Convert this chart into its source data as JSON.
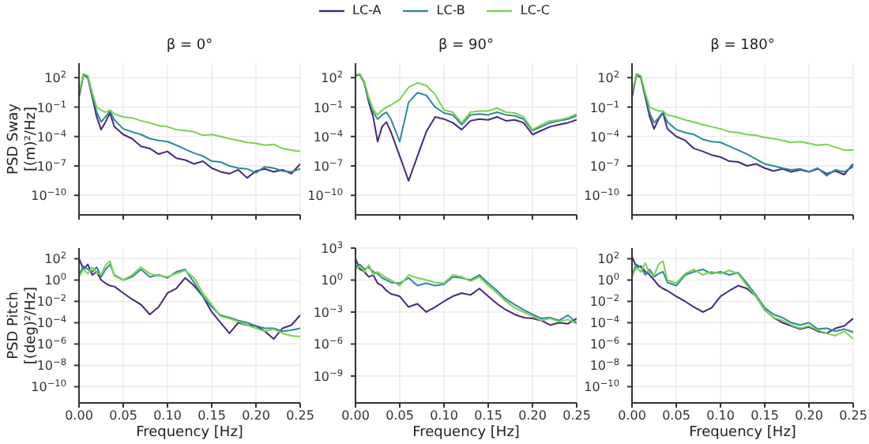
{
  "chart_data": [
    {
      "type": "line",
      "title": "β = 0°",
      "ylabel": "PSD Sway [(m)²/Hz]",
      "legend": "top",
      "grid": true,
      "log": "y",
      "tick_labels": "y",
      "xlim": [
        0,
        0.25
      ],
      "xticks": [
        {
          "value": 0,
          "label": null
        },
        {
          "value": 0.05,
          "label": null
        },
        {
          "value": 0.1,
          "label": null
        },
        {
          "value": 0.15,
          "label": null
        },
        {
          "value": 0.2,
          "label": null
        },
        {
          "value": 0.25,
          "label": null
        }
      ],
      "ylim": [
        1e-12,
        3000
      ],
      "yticks": [
        {
          "value": 100,
          "label": "10$^{2}$"
        },
        {
          "value": 0.1,
          "label": "10$^{−1}$"
        },
        {
          "value": 0.0001,
          "label": "10$^{−4}$"
        },
        {
          "value": 1e-07,
          "label": "10$^{−7}$"
        },
        {
          "value": 1e-10,
          "label": "10$^{−10}$"
        }
      ],
      "x": [
        0,
        0.005,
        0.01,
        0.015,
        0.02,
        0.025,
        0.03,
        0.035,
        0.04,
        0.05,
        0.06,
        0.07,
        0.08,
        0.09,
        0.1,
        0.11,
        0.12,
        0.13,
        0.14,
        0.15,
        0.16,
        0.17,
        0.18,
        0.19,
        0.2,
        0.21,
        0.22,
        0.23,
        0.24,
        0.25
      ],
      "series": [
        {
          "name": "LC-A",
          "color": "#482878",
          "values": [
            1,
            200,
            100,
            1,
            0.01,
            0.0005,
            0.003,
            0.025,
            0.001,
            0.00016,
            6e-05,
            1e-05,
            6e-06,
            1.6e-06,
            3e-06,
            6e-07,
            4e-07,
            1.6e-07,
            3e-07,
            6e-08,
            2.5e-08,
            1.6e-08,
            4e-08,
            6e-09,
            3e-08,
            5e-08,
            2.5e-08,
            4e-08,
            1.6e-08,
            1.6e-07
          ]
        },
        {
          "name": "LC-B",
          "color": "#2a8a99",
          "values": [
            2,
            200,
            130,
            1.6,
            0.03,
            0.003,
            0.01,
            0.04,
            0.005,
            0.0006,
            0.0003,
            0.00016,
            6e-05,
            4e-05,
            3e-05,
            1.3e-05,
            5e-06,
            2e-06,
            1e-06,
            3e-07,
            2.5e-07,
            1e-07,
            6e-08,
            5e-08,
            2e-08,
            8e-08,
            6e-08,
            3e-08,
            2.5e-08,
            5e-08
          ]
        },
        {
          "name": "LC-C",
          "color": "#7ad151",
          "values": [
            3,
            250,
            160,
            3,
            0.1,
            0.05,
            0.03,
            0.05,
            0.02,
            0.01,
            0.008,
            0.004,
            0.0025,
            0.0013,
            0.001,
            0.0005,
            0.0004,
            0.0003,
            0.00013,
            0.00016,
            0.0001,
            6e-05,
            4e-05,
            2.5e-05,
            2e-05,
            1.3e-05,
            1.6e-05,
            6e-06,
            4e-06,
            3e-06
          ]
        }
      ]
    },
    {
      "type": "line",
      "title": "β = 90°",
      "grid": true,
      "log": "y",
      "tick_labels": "y",
      "xlim": [
        0,
        0.25
      ],
      "xticks": [
        {
          "value": 0,
          "label": null
        },
        {
          "value": 0.05,
          "label": null
        },
        {
          "value": 0.1,
          "label": null
        },
        {
          "value": 0.15,
          "label": null
        },
        {
          "value": 0.2,
          "label": null
        },
        {
          "value": 0.25,
          "label": null
        }
      ],
      "ylim": [
        1e-12,
        3000
      ],
      "yticks": [
        {
          "value": 100,
          "label": "10$^{2}$"
        },
        {
          "value": 0.1,
          "label": "10$^{−1}$"
        },
        {
          "value": 0.0001,
          "label": "10$^{−4}$"
        },
        {
          "value": 1e-07,
          "label": "10$^{−7}$"
        },
        {
          "value": 1e-10,
          "label": "10$^{−10}$"
        }
      ],
      "x": [
        0,
        0.005,
        0.01,
        0.015,
        0.02,
        0.025,
        0.03,
        0.035,
        0.04,
        0.05,
        0.06,
        0.07,
        0.08,
        0.09,
        0.1,
        0.11,
        0.12,
        0.13,
        0.14,
        0.15,
        0.16,
        0.17,
        0.18,
        0.19,
        0.2,
        0.21,
        0.22,
        0.23,
        0.24,
        0.25
      ],
      "series": [
        {
          "name": "LC-A",
          "color": "#482878",
          "values": [
            160,
            200,
            30,
            0.3,
            0.01,
            3e-05,
            0.001,
            0.003,
            0.0003,
            1e-06,
            3e-09,
            1e-06,
            0.0003,
            0.01,
            0.006,
            0.0025,
            0.0005,
            0.004,
            0.006,
            0.005,
            0.01,
            0.004,
            0.005,
            0.0025,
            0.00016,
            0.0004,
            0.001,
            0.0016,
            0.0025,
            0.005
          ]
        },
        {
          "name": "LC-B",
          "color": "#2a8a99",
          "values": [
            160,
            200,
            30,
            0.5,
            0.03,
            0.006,
            0.016,
            0.03,
            0.006,
            3e-05,
            0.3,
            3,
            1.6,
            0.1,
            0.025,
            0.016,
            0.0016,
            0.016,
            0.02,
            0.016,
            0.03,
            0.016,
            0.013,
            0.006,
            0.0004,
            0.001,
            0.0025,
            0.004,
            0.006,
            0.013
          ]
        },
        {
          "name": "LC-C",
          "color": "#7ad151",
          "values": [
            200,
            250,
            40,
            1,
            0.06,
            0.016,
            0.05,
            0.1,
            0.16,
            0.6,
            10,
            30,
            16,
            2,
            0.05,
            0.03,
            0.0025,
            0.03,
            0.04,
            0.04,
            0.08,
            0.03,
            0.025,
            0.01,
            0.0005,
            0.0016,
            0.004,
            0.005,
            0.008,
            0.02
          ]
        }
      ]
    },
    {
      "type": "line",
      "title": "β = 180°",
      "grid": true,
      "log": "y",
      "tick_labels": "y",
      "xlim": [
        0,
        0.25
      ],
      "xticks": [
        {
          "value": 0,
          "label": null
        },
        {
          "value": 0.05,
          "label": null
        },
        {
          "value": 0.1,
          "label": null
        },
        {
          "value": 0.15,
          "label": null
        },
        {
          "value": 0.2,
          "label": null
        },
        {
          "value": 0.25,
          "label": null
        }
      ],
      "ylim": [
        1e-12,
        3000
      ],
      "yticks": [
        {
          "value": 100,
          "label": "10$^{2}$"
        },
        {
          "value": 0.1,
          "label": "10$^{−1}$"
        },
        {
          "value": 0.0001,
          "label": "10$^{−4}$"
        },
        {
          "value": 1e-07,
          "label": "10$^{−7}$"
        },
        {
          "value": 1e-10,
          "label": "10$^{−10}$"
        }
      ],
      "x": [
        0,
        0.005,
        0.01,
        0.015,
        0.02,
        0.025,
        0.03,
        0.035,
        0.04,
        0.05,
        0.06,
        0.07,
        0.08,
        0.09,
        0.1,
        0.11,
        0.12,
        0.13,
        0.14,
        0.15,
        0.16,
        0.17,
        0.18,
        0.19,
        0.2,
        0.21,
        0.22,
        0.23,
        0.24,
        0.25
      ],
      "series": [
        {
          "name": "LC-A",
          "color": "#482878",
          "values": [
            1,
            200,
            100,
            1,
            0.01,
            0.0006,
            0.006,
            0.025,
            0.0006,
            0.0001,
            4e-05,
            6e-06,
            3e-06,
            1.3e-06,
            8e-07,
            3e-07,
            2.5e-07,
            1e-07,
            1.6e-07,
            6e-08,
            3e-08,
            5e-08,
            2.5e-08,
            4e-08,
            2.5e-08,
            5e-08,
            1.6e-08,
            3e-08,
            1.3e-08,
            1.6e-07
          ]
        },
        {
          "name": "LC-B",
          "color": "#2a8a99",
          "values": [
            2,
            200,
            130,
            1.6,
            0.025,
            0.0025,
            0.008,
            0.03,
            0.003,
            0.0005,
            0.00025,
            0.00016,
            5e-05,
            3e-05,
            2.5e-05,
            1e-05,
            4e-06,
            1.6e-06,
            5e-07,
            1.6e-07,
            1e-07,
            6e-08,
            4e-08,
            5e-08,
            2.5e-08,
            6e-08,
            1e-08,
            4e-08,
            2.5e-08,
            8e-08
          ]
        },
        {
          "name": "LC-C",
          "color": "#7ad151",
          "values": [
            3,
            250,
            160,
            3,
            0.1,
            0.06,
            0.04,
            0.04,
            0.016,
            0.01,
            0.005,
            0.003,
            0.0016,
            0.001,
            0.0006,
            0.0003,
            0.00025,
            0.00016,
            0.00013,
            8e-05,
            6e-05,
            4e-05,
            2.5e-05,
            3e-05,
            2e-05,
            1.3e-05,
            1.6e-05,
            8e-06,
            4e-06,
            4e-06
          ]
        }
      ]
    },
    {
      "type": "line",
      "xlabel": "Frequency [Hz]",
      "ylabel": "PSD Pitch [(deg)²/Hz]",
      "grid": true,
      "log": "y",
      "xlim": [
        0,
        0.25
      ],
      "xticks": [
        {
          "value": 0,
          "label": "0.00"
        },
        {
          "value": 0.05,
          "label": "0.05"
        },
        {
          "value": 0.1,
          "label": "0.10"
        },
        {
          "value": 0.15,
          "label": "0.15"
        },
        {
          "value": 0.2,
          "label": "0.20"
        },
        {
          "value": 0.25,
          "label": "0.25"
        }
      ],
      "ylim": [
        3e-12,
        1000
      ],
      "yticks": [
        {
          "value": 100,
          "label": "10$^{2}$"
        },
        {
          "value": 1,
          "label": "10$^{0}$"
        },
        {
          "value": 0.01,
          "label": "10$^{−2}$"
        },
        {
          "value": 0.0001,
          "label": "10$^{−4}$"
        },
        {
          "value": 1e-06,
          "label": "10$^{−6}$"
        },
        {
          "value": 1e-08,
          "label": "10$^{−8}$"
        },
        {
          "value": 1e-10,
          "label": "10$^{−10}$"
        }
      ],
      "x": [
        0,
        0.005,
        0.01,
        0.015,
        0.02,
        0.025,
        0.03,
        0.035,
        0.04,
        0.05,
        0.06,
        0.07,
        0.08,
        0.09,
        0.1,
        0.11,
        0.12,
        0.13,
        0.14,
        0.15,
        0.16,
        0.17,
        0.18,
        0.19,
        0.2,
        0.21,
        0.22,
        0.23,
        0.24,
        0.25
      ],
      "series": [
        {
          "name": "LC-A",
          "color": "#482878",
          "values": [
            100,
            10,
            30,
            3,
            6,
            1,
            0.5,
            0.3,
            0.25,
            0.06,
            0.016,
            0.005,
            0.0006,
            0.003,
            0.06,
            0.16,
            1.6,
            0.3,
            0.03,
            0.001,
            0.0001,
            1e-05,
            0.0001,
            6e-05,
            5e-05,
            1.6e-05,
            3e-06,
            3e-05,
            6e-05,
            0.0005
          ]
        },
        {
          "name": "LC-B",
          "color": "#2a8a99",
          "values": [
            3,
            20,
            10,
            6,
            16,
            2,
            10,
            30,
            3,
            1,
            2,
            10,
            2,
            3,
            1.6,
            6,
            10,
            0.6,
            0.03,
            0.003,
            0.0005,
            0.0003,
            0.00016,
            0.0001,
            5e-05,
            3e-05,
            3e-05,
            1.6e-05,
            2e-05,
            3e-05
          ]
        },
        {
          "name": "LC-C",
          "color": "#7ad151",
          "values": [
            2,
            10,
            4,
            16,
            5,
            3,
            25,
            60,
            2.5,
            1,
            3,
            16,
            4,
            2.5,
            2,
            4,
            8,
            1.6,
            0.06,
            0.005,
            0.0004,
            0.00025,
            0.00013,
            6e-05,
            3e-05,
            1.6e-05,
            2.5e-05,
            1e-05,
            6e-06,
            5e-06
          ]
        }
      ]
    },
    {
      "type": "line",
      "xlabel": "Frequency [Hz]",
      "grid": true,
      "log": "y",
      "xlim": [
        0,
        0.25
      ],
      "xticks": [
        {
          "value": 0,
          "label": "0.00"
        },
        {
          "value": 0.05,
          "label": "0.05"
        },
        {
          "value": 0.1,
          "label": "0.10"
        },
        {
          "value": 0.15,
          "label": "0.15"
        },
        {
          "value": 0.2,
          "label": "0.20"
        },
        {
          "value": 0.25,
          "label": "0.25"
        }
      ],
      "ylim": [
        3e-12,
        1000
      ],
      "yticks": [
        {
          "value": 1000,
          "label": "10$^{3}$"
        },
        {
          "value": 1,
          "label": "10$^{0}$"
        },
        {
          "value": 0.001,
          "label": "10$^{−3}$"
        },
        {
          "value": 1e-06,
          "label": "10$^{−6}$"
        },
        {
          "value": 1e-09,
          "label": "10$^{−9}$"
        }
      ],
      "x": [
        0,
        0.005,
        0.01,
        0.015,
        0.02,
        0.025,
        0.03,
        0.035,
        0.04,
        0.05,
        0.06,
        0.07,
        0.08,
        0.09,
        0.1,
        0.11,
        0.12,
        0.13,
        0.14,
        0.15,
        0.16,
        0.17,
        0.18,
        0.19,
        0.2,
        0.21,
        0.22,
        0.23,
        0.24,
        0.25
      ],
      "series": [
        {
          "name": "LC-A",
          "color": "#482878",
          "values": [
            100,
            10,
            6,
            2,
            3,
            0.5,
            0.3,
            0.1,
            0.05,
            0.03,
            0.003,
            0.006,
            0.001,
            0.003,
            0.01,
            0.03,
            0.06,
            0.04,
            0.16,
            0.03,
            0.006,
            0.0016,
            0.0006,
            0.0003,
            0.00025,
            0.00016,
            6e-05,
            0.0001,
            8e-05,
            0.00025
          ]
        },
        {
          "name": "LC-B",
          "color": "#2a8a99",
          "values": [
            16,
            30,
            10,
            16,
            6,
            4,
            1.6,
            1,
            0.6,
            0.5,
            1.6,
            0.3,
            0.5,
            0.3,
            0.4,
            2,
            1.6,
            1,
            3,
            0.5,
            0.1,
            0.016,
            0.005,
            0.0016,
            0.0006,
            0.00025,
            0.0003,
            0.00016,
            0.0005,
            0.0001
          ]
        },
        {
          "name": "LC-C",
          "color": "#7ad151",
          "values": [
            10,
            20,
            6,
            25,
            3,
            6,
            3,
            1.6,
            1,
            0.3,
            3,
            1.6,
            1,
            0.6,
            0.5,
            3,
            2,
            0.8,
            2,
            0.3,
            0.06,
            0.01,
            0.0025,
            0.001,
            0.0004,
            0.00016,
            0.00025,
            0.00013,
            0.0002,
            8e-05
          ]
        }
      ]
    },
    {
      "type": "line",
      "xlabel": "Frequency [Hz]",
      "grid": true,
      "log": "y",
      "xlim": [
        0,
        0.25
      ],
      "xticks": [
        {
          "value": 0,
          "label": "0.00"
        },
        {
          "value": 0.05,
          "label": "0.05"
        },
        {
          "value": 0.1,
          "label": "0.10"
        },
        {
          "value": 0.15,
          "label": "0.15"
        },
        {
          "value": 0.2,
          "label": "0.20"
        },
        {
          "value": 0.25,
          "label": "0.25"
        }
      ],
      "ylim": [
        3e-12,
        1000
      ],
      "yticks": [
        {
          "value": 100,
          "label": "10$^{2}$"
        },
        {
          "value": 1,
          "label": "10$^{0}$"
        },
        {
          "value": 0.01,
          "label": "10$^{−2}$"
        },
        {
          "value": 0.0001,
          "label": "10$^{−4}$"
        },
        {
          "value": 1e-06,
          "label": "10$^{−6}$"
        },
        {
          "value": 1e-08,
          "label": "10$^{−8}$"
        },
        {
          "value": 1e-10,
          "label": "10$^{−10}$"
        }
      ],
      "x": [
        0,
        0.005,
        0.01,
        0.015,
        0.02,
        0.025,
        0.03,
        0.035,
        0.04,
        0.05,
        0.06,
        0.07,
        0.08,
        0.09,
        0.1,
        0.11,
        0.12,
        0.13,
        0.14,
        0.15,
        0.16,
        0.17,
        0.18,
        0.19,
        0.2,
        0.21,
        0.22,
        0.23,
        0.24,
        0.25
      ],
      "series": [
        {
          "name": "LC-A",
          "color": "#482878",
          "values": [
            160,
            16,
            20,
            6,
            3,
            1,
            0.3,
            0.16,
            0.1,
            0.03,
            0.01,
            0.003,
            0.001,
            0.0025,
            0.03,
            0.1,
            0.3,
            0.16,
            0.03,
            0.0016,
            0.0003,
            0.0001,
            5e-05,
            2.5e-05,
            4e-05,
            1.6e-05,
            1e-05,
            3e-05,
            5e-05,
            0.00025
          ]
        },
        {
          "name": "LC-B",
          "color": "#2a8a99",
          "values": [
            3,
            30,
            16,
            3,
            10,
            2,
            4,
            6,
            0.6,
            0.3,
            3,
            6,
            10,
            4,
            6,
            3,
            5,
            0.5,
            0.04,
            0.0025,
            0.0006,
            0.0003,
            0.0001,
            6e-05,
            0.0001,
            2.5e-05,
            3e-05,
            1.6e-05,
            2.5e-05,
            1.3e-05
          ]
        },
        {
          "name": "LC-C",
          "color": "#7ad151",
          "values": [
            2,
            16,
            6,
            40,
            4,
            3,
            30,
            60,
            1,
            0.5,
            4,
            10,
            3,
            6,
            4,
            8,
            4,
            0.3,
            0.03,
            0.0016,
            0.0003,
            0.00016,
            6e-05,
            3e-05,
            5e-05,
            2e-05,
            1e-05,
            6e-06,
            1.6e-05,
            3e-06
          ]
        }
      ]
    }
  ]
}
